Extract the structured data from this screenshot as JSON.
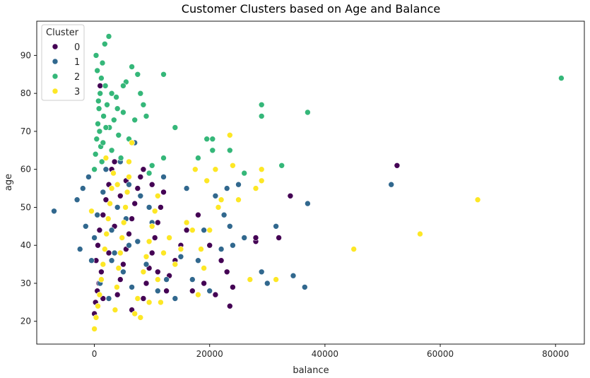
{
  "chart_data": {
    "type": "scatter",
    "title": "Customer Clusters based on Age and Balance",
    "xlabel": "balance",
    "ylabel": "age",
    "xlim": [
      -10000,
      85000
    ],
    "ylim": [
      14,
      99
    ],
    "x_ticks": [
      0,
      20000,
      40000,
      60000,
      80000
    ],
    "y_ticks": [
      20,
      30,
      40,
      50,
      60,
      70,
      80,
      90
    ],
    "grid": false,
    "legend": {
      "title": "Cluster",
      "position": "top-left"
    },
    "series": [
      {
        "name": "0",
        "color": "#440154",
        "points": [
          [
            0,
            22
          ],
          [
            200,
            25
          ],
          [
            500,
            28
          ],
          [
            800,
            30
          ],
          [
            1200,
            33
          ],
          [
            300,
            36
          ],
          [
            600,
            40
          ],
          [
            900,
            44
          ],
          [
            1500,
            48
          ],
          [
            2000,
            52
          ],
          [
            2500,
            56
          ],
          [
            3000,
            60
          ],
          [
            3500,
            62
          ],
          [
            1000,
            82
          ],
          [
            4000,
            27
          ],
          [
            4500,
            31
          ],
          [
            5000,
            35
          ],
          [
            5500,
            39
          ],
          [
            6000,
            43
          ],
          [
            6500,
            47
          ],
          [
            7000,
            51
          ],
          [
            7500,
            55
          ],
          [
            8000,
            58
          ],
          [
            8500,
            26
          ],
          [
            9000,
            30
          ],
          [
            9500,
            34
          ],
          [
            10000,
            38
          ],
          [
            10500,
            42
          ],
          [
            11000,
            46
          ],
          [
            11500,
            50
          ],
          [
            12000,
            54
          ],
          [
            12500,
            28
          ],
          [
            13000,
            32
          ],
          [
            14000,
            36
          ],
          [
            15000,
            40
          ],
          [
            16000,
            44
          ],
          [
            17000,
            28
          ],
          [
            18000,
            48
          ],
          [
            19000,
            30
          ],
          [
            20000,
            40
          ],
          [
            21000,
            27
          ],
          [
            22000,
            36
          ],
          [
            23000,
            33
          ],
          [
            23500,
            24
          ],
          [
            24000,
            29
          ],
          [
            28000,
            41
          ],
          [
            28000,
            42
          ],
          [
            32000,
            42
          ],
          [
            34000,
            53
          ],
          [
            52500,
            61
          ],
          [
            1500,
            26
          ],
          [
            2500,
            38
          ],
          [
            3500,
            45
          ],
          [
            4500,
            53
          ],
          [
            5500,
            57
          ],
          [
            6500,
            23
          ],
          [
            7500,
            41
          ],
          [
            8500,
            60
          ],
          [
            10000,
            56
          ],
          [
            11000,
            33
          ]
        ]
      },
      {
        "name": "1",
        "color": "#31688e",
        "points": [
          [
            -7000,
            49
          ],
          [
            -3000,
            52
          ],
          [
            -2500,
            39
          ],
          [
            -2000,
            55
          ],
          [
            -1500,
            45
          ],
          [
            -1000,
            58
          ],
          [
            -500,
            36
          ],
          [
            0,
            42
          ],
          [
            500,
            48
          ],
          [
            1000,
            30
          ],
          [
            1500,
            54
          ],
          [
            2000,
            60
          ],
          [
            2500,
            26
          ],
          [
            3000,
            44
          ],
          [
            3500,
            38
          ],
          [
            4000,
            50
          ],
          [
            4500,
            62
          ],
          [
            5000,
            33
          ],
          [
            5500,
            47
          ],
          [
            6000,
            56
          ],
          [
            6500,
            29
          ],
          [
            7000,
            67
          ],
          [
            7500,
            41
          ],
          [
            8000,
            53
          ],
          [
            9000,
            35
          ],
          [
            10000,
            46
          ],
          [
            11000,
            28
          ],
          [
            12000,
            58
          ],
          [
            13000,
            42
          ],
          [
            14000,
            26
          ],
          [
            15000,
            37
          ],
          [
            16000,
            55
          ],
          [
            17000,
            31
          ],
          [
            18000,
            36
          ],
          [
            19000,
            44
          ],
          [
            20000,
            28
          ],
          [
            21000,
            53
          ],
          [
            22000,
            39
          ],
          [
            22500,
            48
          ],
          [
            23000,
            55
          ],
          [
            23500,
            45
          ],
          [
            24000,
            40
          ],
          [
            25000,
            56
          ],
          [
            26000,
            42
          ],
          [
            29000,
            33
          ],
          [
            30000,
            30
          ],
          [
            31500,
            45
          ],
          [
            34500,
            32
          ],
          [
            36500,
            29
          ],
          [
            37000,
            51
          ],
          [
            51500,
            56
          ],
          [
            3000,
            36
          ],
          [
            6000,
            40
          ],
          [
            9500,
            50
          ],
          [
            12500,
            31
          ]
        ]
      },
      {
        "name": "2",
        "color": "#35b779",
        "points": [
          [
            0,
            60
          ],
          [
            200,
            64
          ],
          [
            400,
            68
          ],
          [
            600,
            72
          ],
          [
            800,
            76
          ],
          [
            1000,
            80
          ],
          [
            1200,
            84
          ],
          [
            1400,
            88
          ],
          [
            300,
            90
          ],
          [
            1800,
            93
          ],
          [
            2500,
            95
          ],
          [
            500,
            86
          ],
          [
            700,
            78
          ],
          [
            900,
            70
          ],
          [
            1100,
            66
          ],
          [
            1300,
            62
          ],
          [
            1600,
            74
          ],
          [
            1900,
            82
          ],
          [
            2200,
            77
          ],
          [
            2600,
            71
          ],
          [
            3000,
            65
          ],
          [
            3400,
            73
          ],
          [
            3800,
            79
          ],
          [
            4200,
            69
          ],
          [
            4600,
            63
          ],
          [
            5000,
            75
          ],
          [
            5500,
            83
          ],
          [
            6000,
            68
          ],
          [
            6500,
            87
          ],
          [
            7000,
            73
          ],
          [
            7500,
            85
          ],
          [
            8000,
            80
          ],
          [
            8500,
            77
          ],
          [
            9000,
            74
          ],
          [
            9500,
            59
          ],
          [
            10000,
            61
          ],
          [
            12000,
            85
          ],
          [
            12000,
            63
          ],
          [
            14000,
            71
          ],
          [
            18000,
            63
          ],
          [
            19500,
            68
          ],
          [
            20500,
            68
          ],
          [
            20500,
            65
          ],
          [
            23500,
            65
          ],
          [
            26000,
            59
          ],
          [
            29000,
            74
          ],
          [
            29000,
            77
          ],
          [
            32500,
            61
          ],
          [
            37000,
            75
          ],
          [
            81000,
            84
          ],
          [
            1500,
            67
          ],
          [
            2000,
            71
          ],
          [
            3000,
            80
          ],
          [
            4000,
            76
          ],
          [
            5000,
            82
          ]
        ]
      },
      {
        "name": "3",
        "color": "#fde725",
        "points": [
          [
            -500,
            49
          ],
          [
            0,
            18
          ],
          [
            300,
            21
          ],
          [
            600,
            24
          ],
          [
            900,
            27
          ],
          [
            1200,
            31
          ],
          [
            1500,
            35
          ],
          [
            1800,
            39
          ],
          [
            2100,
            43
          ],
          [
            2400,
            47
          ],
          [
            2700,
            51
          ],
          [
            3000,
            55
          ],
          [
            3300,
            59
          ],
          [
            3600,
            23
          ],
          [
            3900,
            29
          ],
          [
            4200,
            34
          ],
          [
            4500,
            38
          ],
          [
            4800,
            42
          ],
          [
            5100,
            46
          ],
          [
            5400,
            50
          ],
          [
            5700,
            54
          ],
          [
            6000,
            58
          ],
          [
            6500,
            67
          ],
          [
            7000,
            22
          ],
          [
            7500,
            26
          ],
          [
            8000,
            21
          ],
          [
            8500,
            33
          ],
          [
            9000,
            37
          ],
          [
            9500,
            41
          ],
          [
            10000,
            45
          ],
          [
            10500,
            49
          ],
          [
            11000,
            53
          ],
          [
            11500,
            25
          ],
          [
            12000,
            38
          ],
          [
            13000,
            42
          ],
          [
            14000,
            35
          ],
          [
            15000,
            39
          ],
          [
            16000,
            46
          ],
          [
            17000,
            44
          ],
          [
            17500,
            60
          ],
          [
            18000,
            27
          ],
          [
            18500,
            39
          ],
          [
            19000,
            34
          ],
          [
            19500,
            57
          ],
          [
            20000,
            44
          ],
          [
            21000,
            60
          ],
          [
            21500,
            50
          ],
          [
            22000,
            52
          ],
          [
            23500,
            69
          ],
          [
            24000,
            61
          ],
          [
            25000,
            52
          ],
          [
            27000,
            31
          ],
          [
            28000,
            55
          ],
          [
            29000,
            60
          ],
          [
            29000,
            57
          ],
          [
            31500,
            31
          ],
          [
            45000,
            39
          ],
          [
            56500,
            43
          ],
          [
            66500,
            52
          ],
          [
            2000,
            63
          ],
          [
            4000,
            56
          ],
          [
            6000,
            62
          ],
          [
            9500,
            25
          ],
          [
            11000,
            31
          ]
        ]
      }
    ]
  }
}
